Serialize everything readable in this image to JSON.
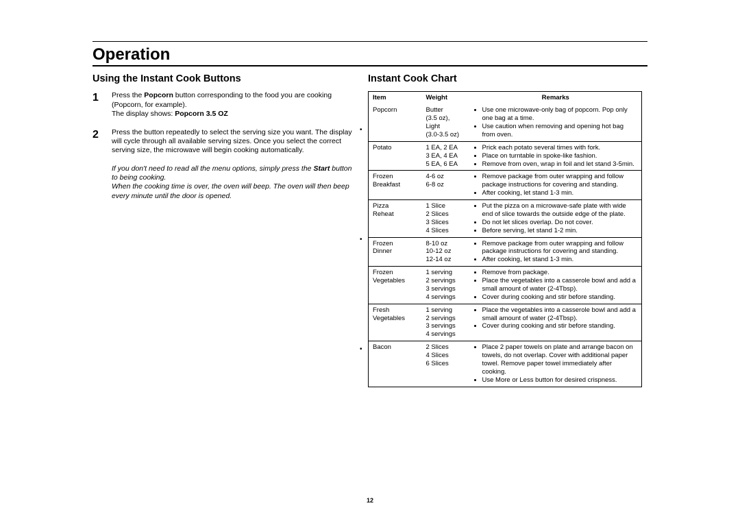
{
  "pageNumber": "12",
  "headings": {
    "main": "Operation",
    "left": "Using the Instant Cook Buttons",
    "right": "Instant Cook Chart"
  },
  "steps": [
    {
      "num": "1",
      "line1a": "Press the ",
      "line1b": "Popcorn",
      "line1c": " button corresponding to the food you are cooking (Popcorn, for example).",
      "line2a": "The display shows: ",
      "line2b": "Popcorn 3.5 OZ"
    },
    {
      "num": "2",
      "text": "Press the button repeatedly to select the serving size you want. The display will cycle through all available serving sizes. Once you select the correct serving size, the microwave will begin cooking automatically."
    }
  ],
  "note": {
    "l1a": "If you don't need to read all the menu options, simply press the ",
    "l1b": "Start",
    "l1c": " button to being cooking.",
    "l2": "When the cooking time is over, the oven will beep. The oven will then beep every minute until the door is opened."
  },
  "table": {
    "headers": {
      "item": "Item",
      "weight": "Weight",
      "remarks": "Remarks"
    },
    "rows": [
      {
        "item": "Popcorn",
        "weight": "Butter\n(3.5 oz),\nLight\n(3.0-3.5 oz)",
        "remarks": [
          "Use one microwave-only bag of popcorn. Pop only one bag at a time.",
          "Use caution when removing and opening hot bag from oven."
        ]
      },
      {
        "item": "Potato",
        "weight": "1 EA, 2 EA\n3 EA, 4 EA\n5 EA, 6 EA",
        "remarks": [
          "Prick each potato several times with fork.",
          "Place on turntable in spoke-like fashion.",
          "Remove from oven, wrap in foil and let stand 3-5min."
        ]
      },
      {
        "item": "Frozen Breakfast",
        "weight": "4-6 oz\n6-8 oz",
        "remarks": [
          "Remove package from outer wrapping and follow package instructions for covering and standing.",
          "After cooking, let stand 1-3 min."
        ]
      },
      {
        "item": "Pizza Reheat",
        "weight": "1 Slice\n2 Slices\n3 Slices\n4 Slices",
        "remarks": [
          "Put the pizza on a microwave-safe plate with wide end of slice towards the outside edge of the plate.",
          "Do not let slices overlap. Do not cover.",
          "Before serving, let stand 1-2 min."
        ]
      },
      {
        "item": "Frozen Dinner",
        "weight": "8-10 oz\n10-12 oz\n12-14 oz",
        "remarks": [
          "Remove package from outer wrapping and follow package instructions for covering and standing.",
          "After cooking, let stand 1-3 min."
        ]
      },
      {
        "item": "Frozen Vegetables",
        "weight": "1 serving\n2 servings\n3 servings\n4 servings",
        "remarks": [
          "Remove from package.",
          "Place the vegetables into a casserole bowl and add a small amount of water (2-4Tbsp).",
          "Cover during cooking and stir before standing."
        ]
      },
      {
        "item": "Fresh Vegetables",
        "weight": "1 serving\n2 servings\n3 servings\n4 servings",
        "remarks": [
          "Place the vegetables into a casserole bowl and add a small amount of water (2-4Tbsp).",
          "Cover during cooking and stir before standing."
        ]
      },
      {
        "item": "Bacon",
        "weight": "2 Slices\n4 Slices\n6 Slices",
        "remarks": [
          "Place 2 paper towels on plate and arrange bacon on towels, do not overlap. Cover with additional paper towel. Remove paper towel immediately after cooking.",
          "Use More or Less button for desired crispness."
        ]
      }
    ]
  }
}
